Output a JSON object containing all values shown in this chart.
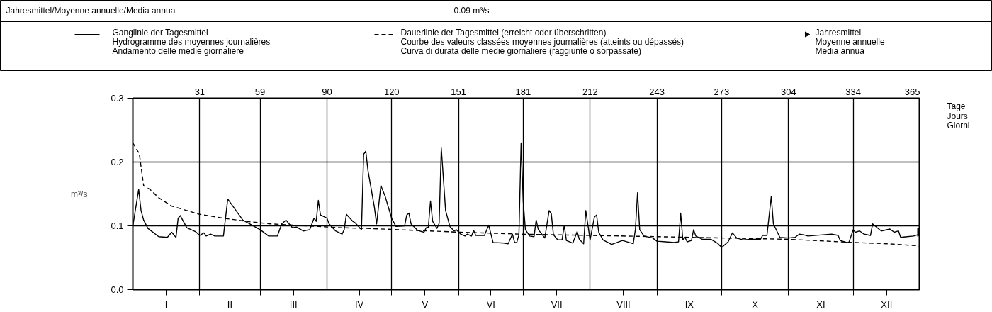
{
  "chart_data": {
    "type": "line",
    "annotations": [
      "Jahresmittel/Moyenne annuelle/Media annua",
      "0.09 m³/s",
      "I",
      "II",
      "III",
      "IV",
      "V",
      "VI",
      "VII",
      "VIII",
      "IX",
      "X",
      "XI",
      "XII"
    ],
    "ylabel": "m³/s",
    "x2label": "Tage\nJours\nGiorni",
    "xlim": [
      0,
      365
    ],
    "ylim": [
      0,
      0.3
    ],
    "yticks": [
      {
        "value": 0,
        "label": "0.0"
      },
      0.1,
      0.2,
      0.3
    ],
    "xticks": [
      31,
      59,
      90,
      120,
      151,
      181,
      212,
      243,
      273,
      304,
      334,
      365
    ],
    "grid": true,
    "legend": "top",
    "series": [
      {
        "name": "Ganglinie der Tagesmittel\nHydrogramme des moyennes journalières\nAndamento delle medie giornaliere",
        "color": "#000000",
        "line_style": "solid",
        "x": [
          0,
          2.7,
          3.8,
          5,
          7,
          12,
          16,
          18,
          20,
          21,
          22,
          25,
          29,
          31,
          33,
          34,
          36,
          38,
          42,
          44,
          51,
          59,
          63,
          67,
          69,
          71,
          74,
          76,
          79,
          82,
          84,
          85,
          86,
          87,
          90,
          91,
          94,
          97,
          98,
          99,
          102,
          103,
          106,
          107,
          108,
          109,
          112,
          113,
          115,
          117,
          120,
          122,
          126,
          127,
          128,
          129,
          132,
          135,
          136,
          137,
          138,
          139,
          141,
          142,
          143,
          145,
          147,
          149,
          150,
          152,
          154,
          155,
          157,
          158,
          159,
          163,
          165,
          167,
          172,
          174,
          176,
          177,
          178,
          179,
          180,
          181,
          182,
          184,
          186,
          187,
          188,
          191,
          193,
          194,
          195,
          197,
          199,
          200,
          201,
          204,
          206,
          207,
          209,
          210,
          212,
          214,
          215,
          216,
          218,
          222,
          227,
          232,
          233,
          234,
          235,
          237,
          241,
          243,
          247,
          251,
          253,
          254,
          255,
          256,
          257,
          259,
          260,
          261,
          264,
          268,
          271,
          273,
          276,
          278,
          280,
          283,
          287,
          291,
          292,
          294,
          296,
          297,
          300,
          304,
          307,
          309,
          311,
          313,
          320,
          324,
          327,
          328,
          331,
          332,
          334,
          335,
          337,
          339,
          342,
          343,
          347,
          351,
          353,
          355,
          356,
          359,
          362,
          365
        ],
        "values": [
          0.1,
          0.157,
          0.124,
          0.109,
          0.096,
          0.083,
          0.082,
          0.09,
          0.082,
          0.112,
          0.116,
          0.097,
          0.091,
          0.085,
          0.089,
          0.084,
          0.087,
          0.084,
          0.084,
          0.142,
          0.109,
          0.094,
          0.084,
          0.084,
          0.103,
          0.109,
          0.097,
          0.098,
          0.092,
          0.094,
          0.112,
          0.107,
          0.14,
          0.117,
          0.112,
          0.103,
          0.092,
          0.087,
          0.094,
          0.118,
          0.107,
          0.105,
          0.094,
          0.212,
          0.217,
          0.187,
          0.129,
          0.103,
          0.163,
          0.146,
          0.112,
          0.099,
          0.1,
          0.117,
          0.12,
          0.103,
          0.093,
          0.09,
          0.097,
          0.098,
          0.139,
          0.107,
          0.096,
          0.104,
          0.222,
          0.124,
          0.099,
          0.092,
          0.094,
          0.087,
          0.084,
          0.087,
          0.084,
          0.093,
          0.085,
          0.085,
          0.101,
          0.074,
          0.073,
          0.072,
          0.087,
          0.074,
          0.074,
          0.086,
          0.23,
          0.138,
          0.094,
          0.084,
          0.083,
          0.109,
          0.094,
          0.081,
          0.124,
          0.119,
          0.086,
          0.078,
          0.078,
          0.101,
          0.077,
          0.073,
          0.091,
          0.079,
          0.072,
          0.124,
          0.078,
          0.114,
          0.117,
          0.09,
          0.078,
          0.071,
          0.077,
          0.072,
          0.094,
          0.152,
          0.094,
          0.084,
          0.081,
          0.076,
          0.075,
          0.074,
          0.075,
          0.12,
          0.078,
          0.082,
          0.075,
          0.077,
          0.094,
          0.084,
          0.079,
          0.079,
          0.073,
          0.066,
          0.075,
          0.089,
          0.081,
          0.078,
          0.079,
          0.079,
          0.085,
          0.085,
          0.146,
          0.103,
          0.082,
          0.081,
          0.082,
          0.087,
          0.086,
          0.084,
          0.086,
          0.087,
          0.085,
          0.077,
          0.074,
          0.074,
          0.094,
          0.09,
          0.092,
          0.087,
          0.085,
          0.103,
          0.092,
          0.095,
          0.09,
          0.092,
          0.082,
          0.083,
          0.084,
          0.087
        ]
      },
      {
        "name": "Dauerlinie der Tagesmittel (erreicht oder überschritten)\nCourbe des valeurs classées moyennes journalières (atteints ou dépassés)\nCurva di durata delle medie giornaliere (raggiunte o sorpassate)",
        "color": "#000000",
        "line_style": "dashed",
        "x": [
          0,
          3,
          5,
          8,
          12,
          18,
          25,
          31,
          42,
          53,
          64,
          75,
          86,
          97,
          108,
          123,
          152,
          180,
          212,
          244,
          274,
          304,
          334,
          350,
          363,
          365
        ],
        "values": [
          0.23,
          0.213,
          0.163,
          0.157,
          0.144,
          0.131,
          0.124,
          0.118,
          0.112,
          0.107,
          0.103,
          0.101,
          0.099,
          0.097,
          0.096,
          0.094,
          0.09,
          0.087,
          0.085,
          0.083,
          0.081,
          0.079,
          0.074,
          0.072,
          0.069,
          0.066
        ]
      },
      {
        "name": "Jahresmittel\nMoyenne annuelle\nMedia annua",
        "type": "scatter",
        "marker": "triangle",
        "color": "#000000",
        "x": [
          365
        ],
        "values": [
          0.09
        ]
      }
    ]
  }
}
